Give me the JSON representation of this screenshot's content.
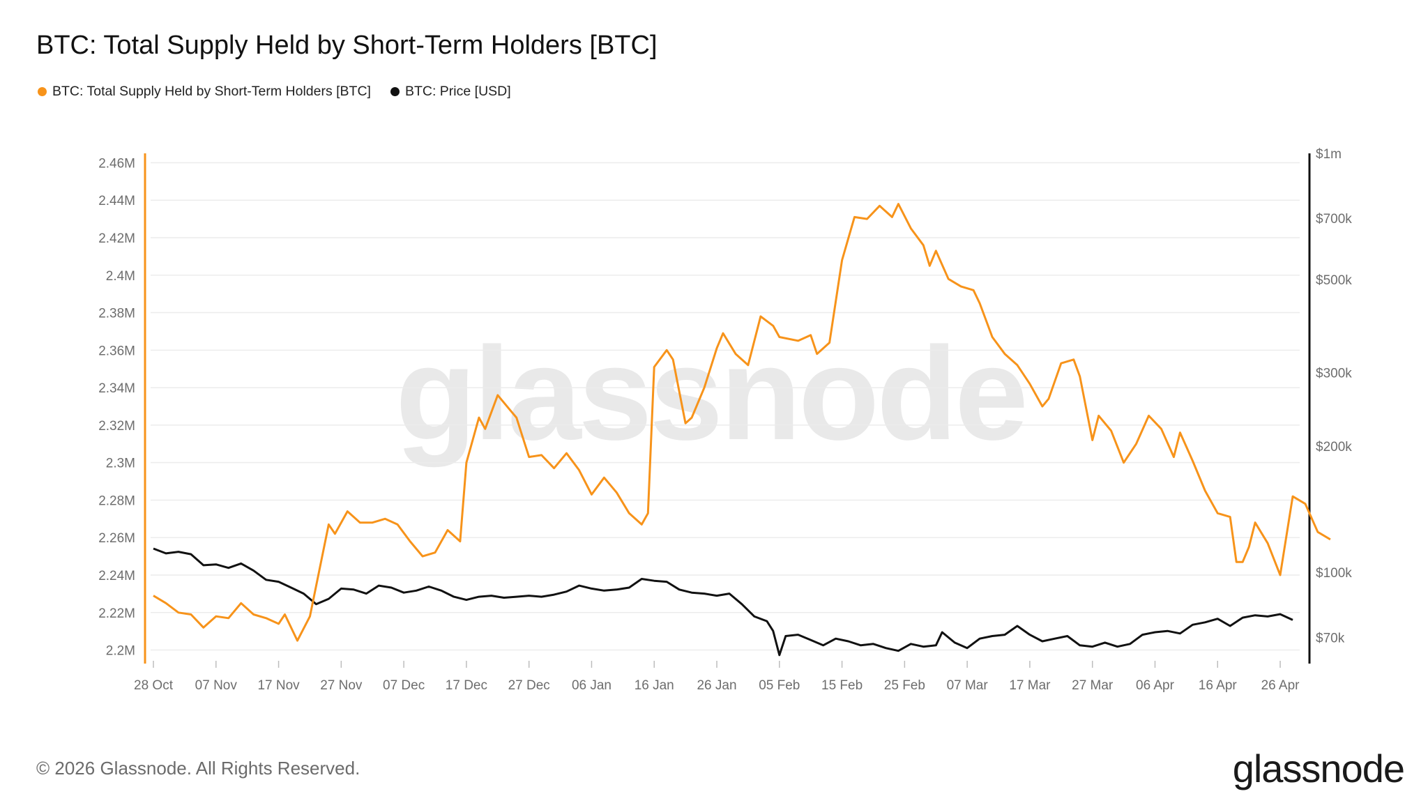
{
  "header": {
    "title": "BTC: Total Supply Held by Short-Term Holders [BTC]"
  },
  "footer": {
    "copyright": "© 2026 Glassnode. All Rights Reserved.",
    "brand": "glassnode"
  },
  "watermark": "glassnode",
  "colors": {
    "supply": "#f7931a",
    "price": "#111111",
    "grid": "#ececec",
    "axis_text": "#6d6d6d"
  },
  "chart_data": {
    "type": "line",
    "title": "BTC: Total Supply Held by Short-Term Holders [BTC]",
    "legend_position": "top-left",
    "grid": true,
    "x_ticks": [
      "28 Oct",
      "07 Nov",
      "17 Nov",
      "27 Nov",
      "07 Dec",
      "17 Dec",
      "27 Dec",
      "06 Jan",
      "16 Jan",
      "26 Jan",
      "05 Feb",
      "15 Feb",
      "25 Feb",
      "07 Mar",
      "17 Mar",
      "27 Mar",
      "06 Apr",
      "16 Apr",
      "26 Apr"
    ],
    "x_range": [
      "2025-10-28",
      "2026-04-28"
    ],
    "y_left": {
      "range": [
        2195000,
        2465000
      ],
      "ticks": [
        2200000,
        2220000,
        2240000,
        2260000,
        2280000,
        2300000,
        2320000,
        2340000,
        2360000,
        2380000,
        2400000,
        2420000,
        2440000,
        2460000
      ],
      "tick_labels": [
        "2.2M",
        "2.22M",
        "2.24M",
        "2.26M",
        "2.28M",
        "2.3M",
        "2.32M",
        "2.34M",
        "2.36M",
        "2.38M",
        "2.4M",
        "2.42M",
        "2.44M",
        "2.46M"
      ]
    },
    "y_right": {
      "scale": "log",
      "range": [
        62000,
        1000000
      ],
      "ticks": [
        70000,
        100000,
        200000,
        300000,
        500000,
        700000,
        1000000
      ],
      "tick_labels": [
        "$70k",
        "$100k",
        "$200k",
        "$300k",
        "$500k",
        "$700k",
        "$1m"
      ]
    },
    "series": [
      {
        "name": "BTC: Total Supply Held by Short-Term Holders [BTC]",
        "axis": "left",
        "color": "#f7931a",
        "points": [
          [
            "2025-10-28",
            2229000
          ],
          [
            "2025-10-30",
            2225000
          ],
          [
            "2025-11-01",
            2220000
          ],
          [
            "2025-11-03",
            2219000
          ],
          [
            "2025-11-05",
            2212000
          ],
          [
            "2025-11-07",
            2218000
          ],
          [
            "2025-11-09",
            2217000
          ],
          [
            "2025-11-11",
            2225000
          ],
          [
            "2025-11-13",
            2219000
          ],
          [
            "2025-11-15",
            2217000
          ],
          [
            "2025-11-17",
            2214000
          ],
          [
            "2025-11-18",
            2219000
          ],
          [
            "2025-11-20",
            2205000
          ],
          [
            "2025-11-22",
            2218000
          ],
          [
            "2025-11-25",
            2267000
          ],
          [
            "2025-11-26",
            2262000
          ],
          [
            "2025-11-28",
            2274000
          ],
          [
            "2025-11-30",
            2268000
          ],
          [
            "2025-12-02",
            2268000
          ],
          [
            "2025-12-04",
            2270000
          ],
          [
            "2025-12-06",
            2267000
          ],
          [
            "2025-12-08",
            2258000
          ],
          [
            "2025-12-10",
            2250000
          ],
          [
            "2025-12-12",
            2252000
          ],
          [
            "2025-12-14",
            2264000
          ],
          [
            "2025-12-16",
            2258000
          ],
          [
            "2025-12-17",
            2300000
          ],
          [
            "2025-12-19",
            2324000
          ],
          [
            "2025-12-20",
            2318000
          ],
          [
            "2025-12-22",
            2336000
          ],
          [
            "2025-12-24",
            2328000
          ],
          [
            "2025-12-25",
            2324000
          ],
          [
            "2025-12-27",
            2303000
          ],
          [
            "2025-12-29",
            2304000
          ],
          [
            "2025-12-31",
            2297000
          ],
          [
            "2026-01-02",
            2305000
          ],
          [
            "2026-01-04",
            2296000
          ],
          [
            "2026-01-06",
            2283000
          ],
          [
            "2026-01-08",
            2292000
          ],
          [
            "2026-01-10",
            2284000
          ],
          [
            "2026-01-12",
            2273000
          ],
          [
            "2026-01-14",
            2267000
          ],
          [
            "2026-01-15",
            2273000
          ],
          [
            "2026-01-16",
            2351000
          ],
          [
            "2026-01-18",
            2360000
          ],
          [
            "2026-01-19",
            2355000
          ],
          [
            "2026-01-21",
            2321000
          ],
          [
            "2026-01-22",
            2324000
          ],
          [
            "2026-01-24",
            2340000
          ],
          [
            "2026-01-26",
            2361000
          ],
          [
            "2026-01-27",
            2369000
          ],
          [
            "2026-01-29",
            2358000
          ],
          [
            "2026-01-31",
            2352000
          ],
          [
            "2026-02-02",
            2378000
          ],
          [
            "2026-02-04",
            2373000
          ],
          [
            "2026-02-05",
            2367000
          ],
          [
            "2026-02-08",
            2365000
          ],
          [
            "2026-02-10",
            2368000
          ],
          [
            "2026-02-11",
            2358000
          ],
          [
            "2026-02-13",
            2364000
          ],
          [
            "2026-02-15",
            2408000
          ],
          [
            "2026-02-17",
            2431000
          ],
          [
            "2026-02-19",
            2430000
          ],
          [
            "2026-02-21",
            2437000
          ],
          [
            "2026-02-23",
            2431000
          ],
          [
            "2026-02-24",
            2438000
          ],
          [
            "2026-02-26",
            2425000
          ],
          [
            "2026-02-28",
            2416000
          ],
          [
            "2026-03-01",
            2405000
          ],
          [
            "2026-03-02",
            2413000
          ],
          [
            "2026-03-04",
            2398000
          ],
          [
            "2026-03-06",
            2394000
          ],
          [
            "2026-03-08",
            2392000
          ],
          [
            "2026-03-09",
            2385000
          ],
          [
            "2026-03-11",
            2367000
          ],
          [
            "2026-03-13",
            2358000
          ],
          [
            "2026-03-15",
            2352000
          ],
          [
            "2026-03-17",
            2342000
          ],
          [
            "2026-03-19",
            2330000
          ],
          [
            "2026-03-20",
            2334000
          ],
          [
            "2026-03-22",
            2353000
          ],
          [
            "2026-03-24",
            2355000
          ],
          [
            "2026-03-25",
            2346000
          ],
          [
            "2026-03-27",
            2312000
          ],
          [
            "2026-03-28",
            2325000
          ],
          [
            "2026-03-30",
            2317000
          ],
          [
            "2026-04-01",
            2300000
          ],
          [
            "2026-04-03",
            2310000
          ],
          [
            "2026-04-05",
            2325000
          ],
          [
            "2026-04-07",
            2318000
          ],
          [
            "2026-04-09",
            2303000
          ],
          [
            "2026-04-10",
            2316000
          ],
          [
            "2026-04-12",
            2301000
          ],
          [
            "2026-04-14",
            2285000
          ],
          [
            "2026-04-16",
            2273000
          ],
          [
            "2026-04-18",
            2271000
          ],
          [
            "2026-04-19",
            2247000
          ],
          [
            "2026-04-20",
            2247000
          ],
          [
            "2026-04-21",
            2255000
          ],
          [
            "2026-04-22",
            2268000
          ],
          [
            "2026-04-24",
            2257000
          ],
          [
            "2026-04-26",
            2240000
          ],
          [
            "2026-04-28",
            2282000
          ],
          [
            "2026-04-30",
            2278000
          ],
          [
            "2026-05-02",
            2263000
          ],
          [
            "2026-05-04",
            2259000
          ]
        ]
      },
      {
        "name": "BTC: Price [USD]",
        "axis": "right",
        "color": "#111111",
        "points": [
          [
            "2025-10-28",
            114000
          ],
          [
            "2025-10-30",
            111000
          ],
          [
            "2025-11-01",
            112000
          ],
          [
            "2025-11-03",
            110500
          ],
          [
            "2025-11-05",
            104000
          ],
          [
            "2025-11-07",
            104500
          ],
          [
            "2025-11-09",
            102500
          ],
          [
            "2025-11-11",
            105000
          ],
          [
            "2025-11-13",
            101000
          ],
          [
            "2025-11-15",
            96000
          ],
          [
            "2025-11-17",
            95000
          ],
          [
            "2025-11-19",
            92000
          ],
          [
            "2025-11-21",
            89000
          ],
          [
            "2025-11-23",
            84000
          ],
          [
            "2025-11-25",
            86500
          ],
          [
            "2025-11-27",
            91500
          ],
          [
            "2025-11-29",
            91000
          ],
          [
            "2025-12-01",
            89000
          ],
          [
            "2025-12-03",
            93000
          ],
          [
            "2025-12-05",
            92000
          ],
          [
            "2025-12-07",
            89500
          ],
          [
            "2025-12-09",
            90500
          ],
          [
            "2025-12-11",
            92500
          ],
          [
            "2025-12-13",
            90500
          ],
          [
            "2025-12-15",
            87500
          ],
          [
            "2025-12-17",
            86000
          ],
          [
            "2025-12-19",
            87500
          ],
          [
            "2025-12-21",
            88000
          ],
          [
            "2025-12-23",
            87000
          ],
          [
            "2025-12-25",
            87500
          ],
          [
            "2025-12-27",
            88000
          ],
          [
            "2025-12-29",
            87500
          ],
          [
            "2025-12-31",
            88500
          ],
          [
            "2026-01-02",
            90000
          ],
          [
            "2026-01-04",
            93000
          ],
          [
            "2026-01-06",
            91500
          ],
          [
            "2026-01-08",
            90500
          ],
          [
            "2026-01-10",
            91000
          ],
          [
            "2026-01-12",
            92000
          ],
          [
            "2026-01-14",
            96500
          ],
          [
            "2026-01-16",
            95500
          ],
          [
            "2026-01-18",
            95000
          ],
          [
            "2026-01-20",
            91000
          ],
          [
            "2026-01-22",
            89500
          ],
          [
            "2026-01-24",
            89000
          ],
          [
            "2026-01-26",
            88000
          ],
          [
            "2026-01-28",
            89000
          ],
          [
            "2026-01-30",
            84000
          ],
          [
            "2026-02-01",
            78500
          ],
          [
            "2026-02-03",
            76500
          ],
          [
            "2026-02-04",
            72500
          ],
          [
            "2026-02-05",
            63500
          ],
          [
            "2026-02-06",
            70500
          ],
          [
            "2026-02-08",
            71000
          ],
          [
            "2026-02-10",
            69000
          ],
          [
            "2026-02-12",
            67000
          ],
          [
            "2026-02-14",
            69500
          ],
          [
            "2026-02-16",
            68500
          ],
          [
            "2026-02-18",
            67000
          ],
          [
            "2026-02-20",
            67500
          ],
          [
            "2026-02-22",
            66000
          ],
          [
            "2026-02-24",
            65000
          ],
          [
            "2026-02-26",
            67500
          ],
          [
            "2026-02-28",
            66500
          ],
          [
            "2026-03-02",
            67000
          ],
          [
            "2026-03-03",
            72000
          ],
          [
            "2026-03-05",
            68000
          ],
          [
            "2026-03-07",
            66000
          ],
          [
            "2026-03-09",
            69500
          ],
          [
            "2026-03-11",
            70500
          ],
          [
            "2026-03-13",
            71000
          ],
          [
            "2026-03-15",
            74500
          ],
          [
            "2026-03-17",
            71000
          ],
          [
            "2026-03-19",
            68500
          ],
          [
            "2026-03-21",
            69500
          ],
          [
            "2026-03-23",
            70500
          ],
          [
            "2026-03-25",
            67000
          ],
          [
            "2026-03-27",
            66500
          ],
          [
            "2026-03-29",
            68000
          ],
          [
            "2026-03-31",
            66500
          ],
          [
            "2026-04-02",
            67500
          ],
          [
            "2026-04-04",
            71000
          ],
          [
            "2026-04-06",
            72000
          ],
          [
            "2026-04-08",
            72500
          ],
          [
            "2026-04-10",
            71500
          ],
          [
            "2026-04-12",
            75000
          ],
          [
            "2026-04-14",
            76000
          ],
          [
            "2026-04-16",
            77500
          ],
          [
            "2026-04-18",
            74500
          ],
          [
            "2026-04-20",
            78000
          ],
          [
            "2026-04-22",
            79000
          ],
          [
            "2026-04-24",
            78500
          ],
          [
            "2026-04-26",
            79500
          ],
          [
            "2026-04-28",
            77000
          ]
        ]
      }
    ]
  }
}
